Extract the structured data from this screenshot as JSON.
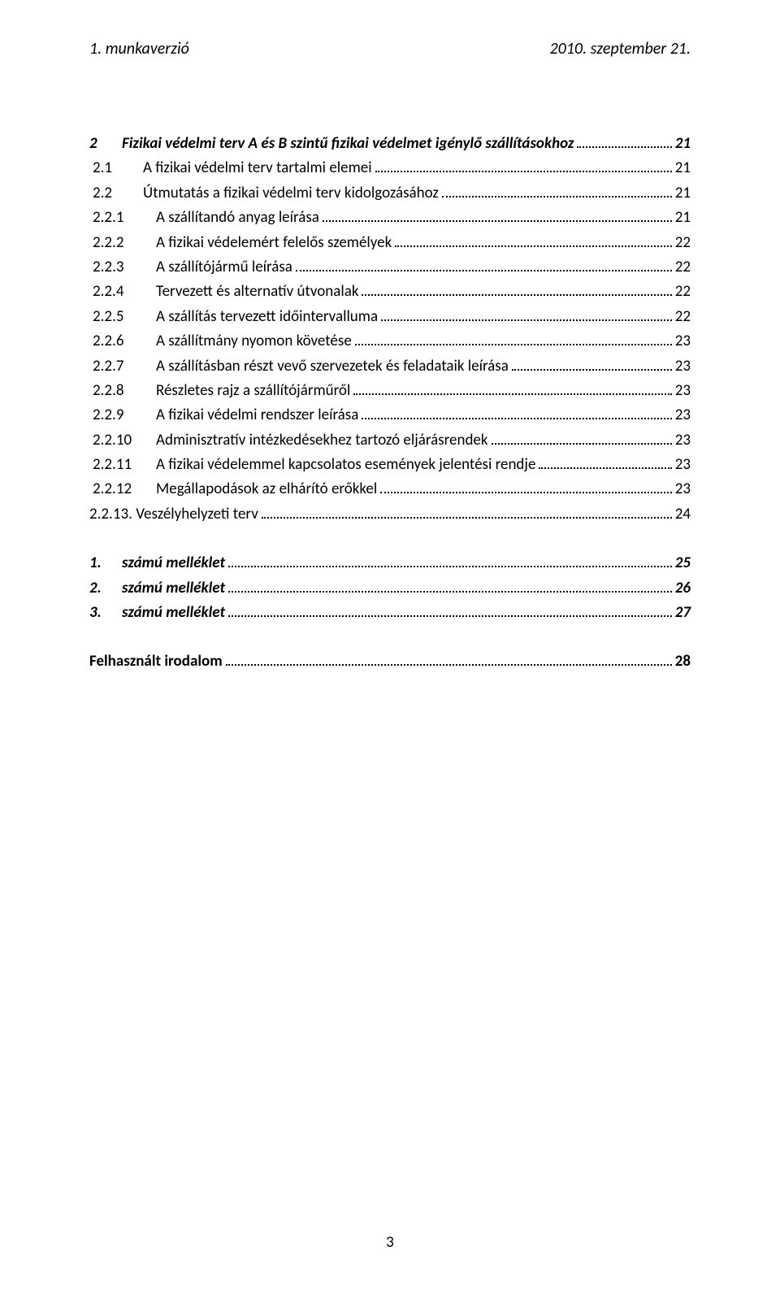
{
  "header": {
    "left": "1. munkaverzió",
    "right": "2010. szeptember 21."
  },
  "toc": [
    {
      "lvl": 1,
      "style": "bold italic",
      "num": "2",
      "title": "Fizikai védelmi terv A és B szintű fizikai védelmet igénylő szállításokhoz",
      "page": "21"
    },
    {
      "lvl": 2,
      "style": "",
      "num": "2.1",
      "title": "A fizikai védelmi terv tartalmi elemei",
      "page": "21"
    },
    {
      "lvl": 2,
      "style": "",
      "num": "2.2",
      "title": "Útmutatás a fizikai védelmi terv kidolgozásához",
      "page": "21"
    },
    {
      "lvl": 3,
      "style": "",
      "num": "2.2.1",
      "title": "A szállítandó anyag leírása",
      "page": "21"
    },
    {
      "lvl": 3,
      "style": "",
      "num": "2.2.2",
      "title": "A fizikai védelemért felelős személyek",
      "page": "22"
    },
    {
      "lvl": 3,
      "style": "",
      "num": "2.2.3",
      "title": "A szállítójármű leírása",
      "page": "22"
    },
    {
      "lvl": 3,
      "style": "",
      "num": "2.2.4",
      "title": "Tervezett és alternatív útvonalak",
      "page": "22"
    },
    {
      "lvl": 3,
      "style": "",
      "num": "2.2.5",
      "title": "A szállítás tervezett időintervalluma",
      "page": "22"
    },
    {
      "lvl": 3,
      "style": "",
      "num": "2.2.6",
      "title": "A szállítmány nyomon követése",
      "page": "23"
    },
    {
      "lvl": 3,
      "style": "",
      "num": "2.2.7",
      "title": "A szállításban részt vevő szervezetek és feladataik leírása",
      "page": "23"
    },
    {
      "lvl": 3,
      "style": "",
      "num": "2.2.8",
      "title": "Részletes rajz a szállítójárműről",
      "page": "23"
    },
    {
      "lvl": 3,
      "style": "",
      "num": "2.2.9",
      "title": "A fizikai védelmi rendszer leírása",
      "page": "23"
    },
    {
      "lvl": 3,
      "style": "",
      "num": "2.2.10",
      "title": "Adminisztratív intézkedésekhez tartozó eljárásrendek",
      "page": "23"
    },
    {
      "lvl": 3,
      "style": "",
      "num": "2.2.11",
      "title": "A fizikai védelemmel kapcsolatos események jelentési rendje",
      "page": "23"
    },
    {
      "lvl": 3,
      "style": "",
      "num": "2.2.12",
      "title": "Megállapodások az elhárító erőkkel",
      "page": "23"
    },
    {
      "lvl": 3,
      "style": "",
      "num": "2.2.13.",
      "title": "Veszélyhelyzeti terv",
      "page": "24",
      "nonum_gap": true
    }
  ],
  "mellekletek": [
    {
      "lvl": 1,
      "style": "bold italic",
      "num": "1.",
      "title": "számú melléklet",
      "page": "25"
    },
    {
      "lvl": 1,
      "style": "bold italic",
      "num": "2.",
      "title": "számú melléklet",
      "page": "26"
    },
    {
      "lvl": 1,
      "style": "bold italic",
      "num": "3.",
      "title": "számú melléklet",
      "page": "27"
    }
  ],
  "irodalom": {
    "lvl": 1,
    "style": "bold",
    "title": "Felhasznált irodalom",
    "page": "28"
  },
  "page_number": "3"
}
